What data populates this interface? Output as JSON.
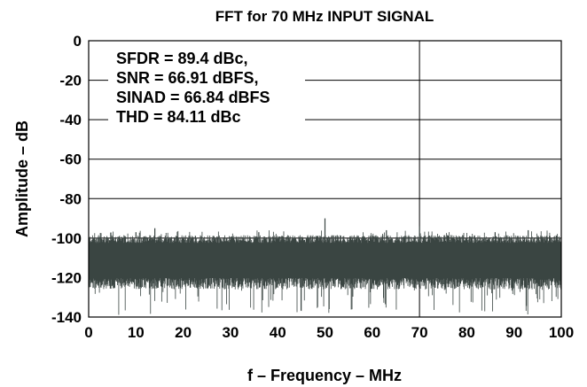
{
  "chart_data": {
    "type": "line",
    "title": "FFT for 70 MHz INPUT SIGNAL",
    "xlabel": "f – Frequency – MHz",
    "ylabel": "Amplitude – dB",
    "xlim": [
      0,
      100
    ],
    "ylim": [
      -140,
      0
    ],
    "xticks": [
      0,
      10,
      20,
      30,
      40,
      50,
      60,
      70,
      80,
      90,
      100
    ],
    "yticks": [
      0,
      -20,
      -40,
      -60,
      -80,
      -100,
      -120,
      -140
    ],
    "grid": "horizontal lines every 20 dB plus one vertical line at 70 MHz",
    "series_color": "#3a4542",
    "annotations": [
      "SFDR = 89.4 dBc,",
      "SNR = 66.91 dBFS,",
      "SINAD = 66.84 dBFS",
      "THD = 84.11 dBc"
    ],
    "noise_floor": {
      "typical_max": -100,
      "typical_min": -120,
      "deep_min": -139
    },
    "spurs": [
      {
        "x": 10,
        "y": -97
      },
      {
        "x": 14,
        "y": -95
      },
      {
        "x": 36,
        "y": -97
      },
      {
        "x": 50,
        "y": -90
      },
      {
        "x": 63,
        "y": -96
      },
      {
        "x": 70,
        "y": -94
      },
      {
        "x": 86,
        "y": -97
      },
      {
        "x": 93,
        "y": -96
      }
    ]
  }
}
